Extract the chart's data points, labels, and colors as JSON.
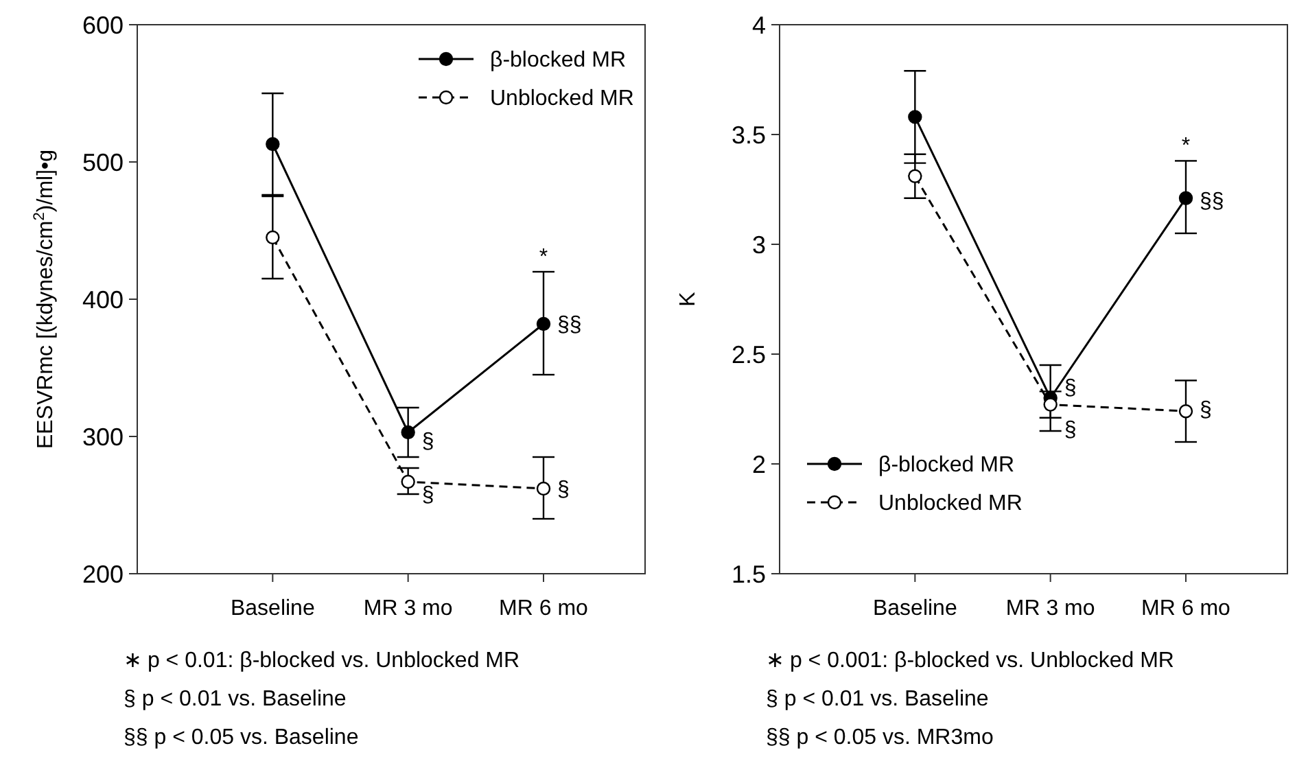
{
  "chart_data": [
    {
      "type": "line",
      "ylabel": "EESVRmc [(kdynes/cm$^{2}$)/ml]•g",
      "categories": [
        "Baseline",
        "MR 3 mo",
        "MR 6 mo"
      ],
      "series": [
        {
          "name": "β-blocked MR",
          "color": "#000000",
          "line_style": "solid",
          "values": [
            513,
            303,
            382
          ],
          "errors": [
            [
              476,
              550
            ],
            [
              285,
              321
            ],
            [
              345,
              420
            ]
          ]
        },
        {
          "name": "Unblocked MR",
          "color": "#000000",
          "line_style": "dashed",
          "values": [
            445,
            267,
            262
          ],
          "errors": [
            [
              415,
              475
            ],
            [
              258,
              277
            ],
            [
              240,
              285
            ]
          ]
        }
      ],
      "ylim": [
        200,
        600
      ],
      "yticks": [
        200,
        300,
        400,
        500,
        600
      ],
      "marker": "circle",
      "legend": "top right",
      "grid": false,
      "annotations": [
        {
          "text": "*",
          "x": "MR 6 mo",
          "y": 420
        },
        {
          "text": "§§",
          "x": "MR 6 mo",
          "y": 382
        },
        {
          "text": "§",
          "x": "MR 3 mo",
          "y": 297
        },
        {
          "text": "§",
          "x": "MR 3 mo",
          "y": 258
        },
        {
          "text": "§",
          "x": "MR 6 mo",
          "y": 262
        },
        "∗ p < 0.01: β-blocked vs. Unblocked MR",
        "§ p < 0.01 vs. Baseline",
        "§§ p < 0.05 vs. Baseline"
      ]
    },
    {
      "type": "line",
      "ylabel": "K",
      "categories": [
        "Baseline",
        "MR 3 mo",
        "MR 6 mo"
      ],
      "series": [
        {
          "name": "β-blocked MR",
          "color": "#000000",
          "line_style": "solid",
          "values": [
            3.58,
            2.3,
            3.21
          ],
          "errors": [
            [
              3.37,
              3.79
            ],
            [
              2.15,
              2.45
            ],
            [
              3.05,
              3.38
            ]
          ]
        },
        {
          "name": "Unblocked MR",
          "color": "#000000",
          "line_style": "dashed",
          "values": [
            3.31,
            2.27,
            2.24
          ],
          "errors": [
            [
              3.21,
              3.41
            ],
            [
              2.21,
              2.33
            ],
            [
              2.1,
              2.38
            ]
          ]
        }
      ],
      "ylim": [
        1.5,
        4
      ],
      "yticks": [
        {
          "value": 1.5,
          "label": "1.5"
        },
        {
          "value": 2,
          "label": "2"
        },
        {
          "value": 2.5,
          "label": "2.5"
        },
        {
          "value": 3,
          "label": "3"
        },
        {
          "value": 3.5,
          "label": "3.5"
        },
        {
          "value": 4,
          "label": "4"
        }
      ],
      "marker": "circle",
      "legend": "bottom left",
      "grid": false,
      "annotations": [
        {
          "text": "*",
          "x": "MR 6 mo",
          "y": 3.38
        },
        {
          "text": "§§",
          "x": "MR 6 mo",
          "y": 3.2
        },
        {
          "text": "§",
          "x": "MR 3 mo",
          "y": 2.35
        },
        {
          "text": "§",
          "x": "MR 3 mo",
          "y": 2.16
        },
        {
          "text": "§",
          "x": "MR 6 mo",
          "y": 2.25
        },
        "∗ p < 0.001: β-blocked vs. Unblocked MR",
        "§ p < 0.01 vs. Baseline",
        "§§ p < 0.05 vs. MR3mo"
      ]
    }
  ]
}
